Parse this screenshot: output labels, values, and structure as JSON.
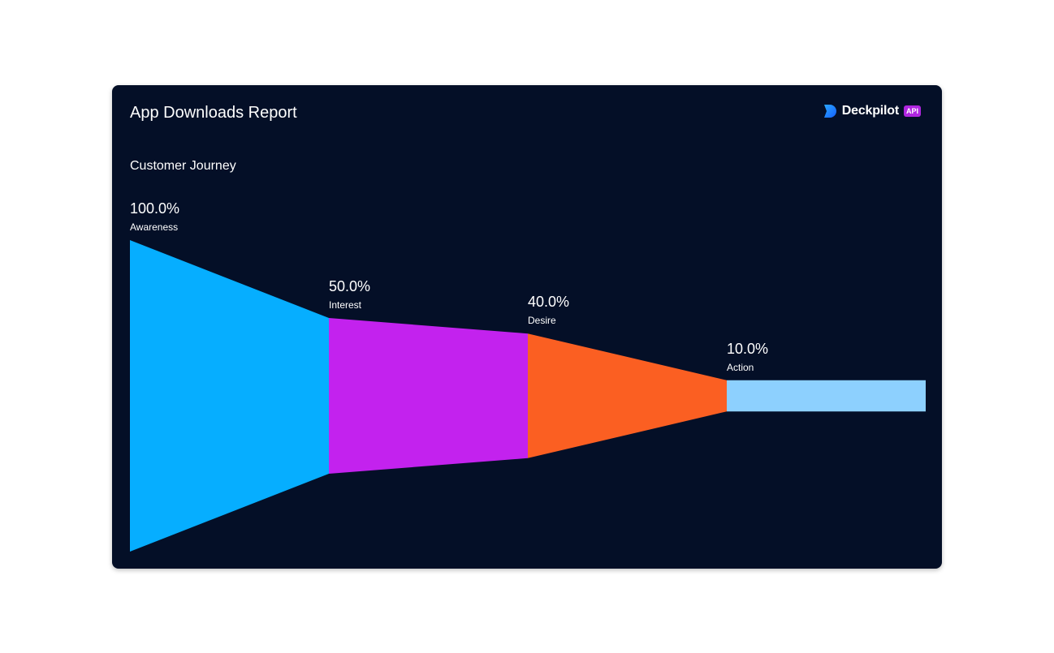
{
  "header": {
    "title": "App Downloads Report",
    "brand_name": "Deckpilot",
    "brand_badge": "API",
    "logo_icon": "deckpilot-logo-icon"
  },
  "chart_data": {
    "type": "funnel",
    "title": "Customer Journey",
    "stages": [
      {
        "label": "Awareness",
        "value": 100.0,
        "display": "100.0%",
        "color": "#06aeff"
      },
      {
        "label": "Interest",
        "value": 50.0,
        "display": "50.0%",
        "color": "#c322ee"
      },
      {
        "label": "Desire",
        "value": 40.0,
        "display": "40.0%",
        "color": "#fb5f22"
      },
      {
        "label": "Action",
        "value": 10.0,
        "display": "10.0%",
        "color": "#8dd0fe"
      }
    ],
    "unit": "%",
    "max": 100
  }
}
